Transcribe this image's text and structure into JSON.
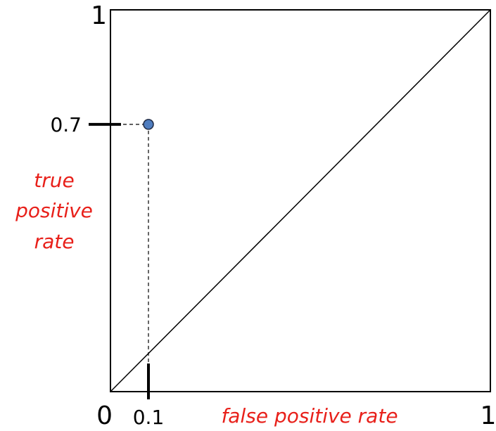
{
  "chart_data": {
    "type": "scatter",
    "title": "",
    "xlabel": "false positive rate",
    "ylabel_lines": [
      "true",
      "positive",
      "rate"
    ],
    "xlim": [
      0,
      1
    ],
    "ylim": [
      0,
      1
    ],
    "grid": false,
    "x_ticks": [
      {
        "value": 0,
        "label": "0"
      },
      {
        "value": 0.1,
        "label": "0.1"
      },
      {
        "value": 1,
        "label": "1"
      }
    ],
    "y_ticks": [
      {
        "value": 0.7,
        "label": "0.7"
      },
      {
        "value": 1,
        "label": "1"
      }
    ],
    "points": [
      {
        "x": 0.1,
        "y": 0.7
      }
    ],
    "reference_line": {
      "from": [
        0,
        0
      ],
      "to": [
        1,
        1
      ]
    },
    "colors": {
      "point_fill": "#4F7DBF",
      "point_stroke": "#1F2A44",
      "label_color": "#E8201A",
      "line_color": "#000000"
    }
  }
}
